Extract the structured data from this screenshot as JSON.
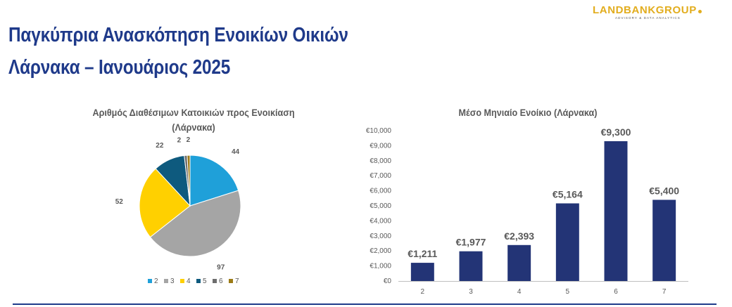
{
  "header": {
    "title_line1": "Παγκύπρια Ανασκόπηση Ενοικίων Οικιών",
    "title_line2": "Λάρνακα – Ιανουάριος 2025",
    "logo_text": "LANDBANKGROUP",
    "logo_tagline": "ADVISORY & DATA ANALYTICS",
    "accent_color": "#1f3a8a",
    "logo_color": "#e2ad1e"
  },
  "chart_data": [
    {
      "type": "pie",
      "title": "Αριθμός Διαθέσιμων Κατοικιών προς Ενοικίαση (Λάρνακα)",
      "categories": [
        "2",
        "3",
        "4",
        "5",
        "6",
        "7"
      ],
      "values": [
        44,
        97,
        52,
        22,
        2,
        2
      ],
      "data_labels": [
        "44",
        "97",
        "52",
        "22",
        "2",
        "2"
      ],
      "colors": [
        "#1fa0d9",
        "#a5a5a5",
        "#ffd000",
        "#0e5a7e",
        "#6d6d6d",
        "#9c7b16"
      ],
      "legend_position": "bottom"
    },
    {
      "type": "bar",
      "title": "Μέσο Μηνιαίο Ενοίκιο (Λάρνακα)",
      "categories": [
        "2",
        "3",
        "4",
        "5",
        "6",
        "7"
      ],
      "values": [
        1211,
        1977,
        2393,
        5164,
        9300,
        5400
      ],
      "data_labels": [
        "€1,211",
        "€1,977",
        "€2,393",
        "€5,164",
        "€9,300",
        "€5,400"
      ],
      "xlabel": "",
      "ylabel": "",
      "ylim": [
        0,
        10000
      ],
      "yticks": [
        0,
        1000,
        2000,
        3000,
        4000,
        5000,
        6000,
        7000,
        8000,
        9000,
        10000
      ],
      "ytick_labels": [
        "€0",
        "€1,000",
        "€2,000",
        "€3,000",
        "€4,000",
        "€5,000",
        "€6,000",
        "€7,000",
        "€8,000",
        "€9,000",
        "€10,000"
      ],
      "bar_color": "#233476",
      "grid": false
    }
  ]
}
